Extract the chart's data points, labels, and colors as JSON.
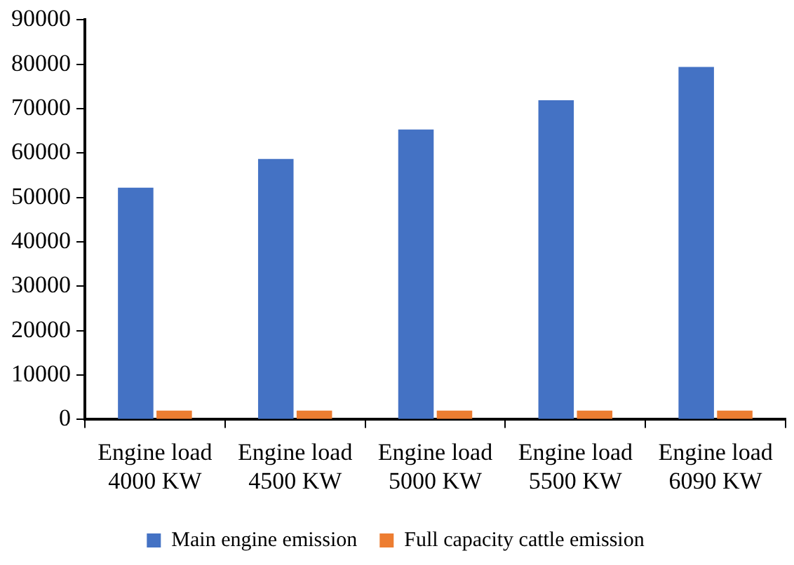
{
  "chart_data": {
    "type": "bar",
    "categories": [
      "Engine load 4000 KW",
      "Engine load 4500 KW",
      "Engine load 5000 KW",
      "Engine load 5500 KW",
      "Engine load 6090 KW"
    ],
    "series": [
      {
        "name": "Main engine emission",
        "color": "#4472c4",
        "values": [
          52200,
          58700,
          65300,
          71900,
          79400
        ]
      },
      {
        "name": "Full capacity cattle emission",
        "color": "#ed7d31",
        "values": [
          2000,
          2000,
          2000,
          2000,
          2000
        ]
      }
    ],
    "ylim": [
      0,
      90000
    ],
    "yticks": [
      0,
      10000,
      20000,
      30000,
      40000,
      50000,
      60000,
      70000,
      80000,
      90000
    ],
    "grid": false,
    "legend": "bottom"
  }
}
